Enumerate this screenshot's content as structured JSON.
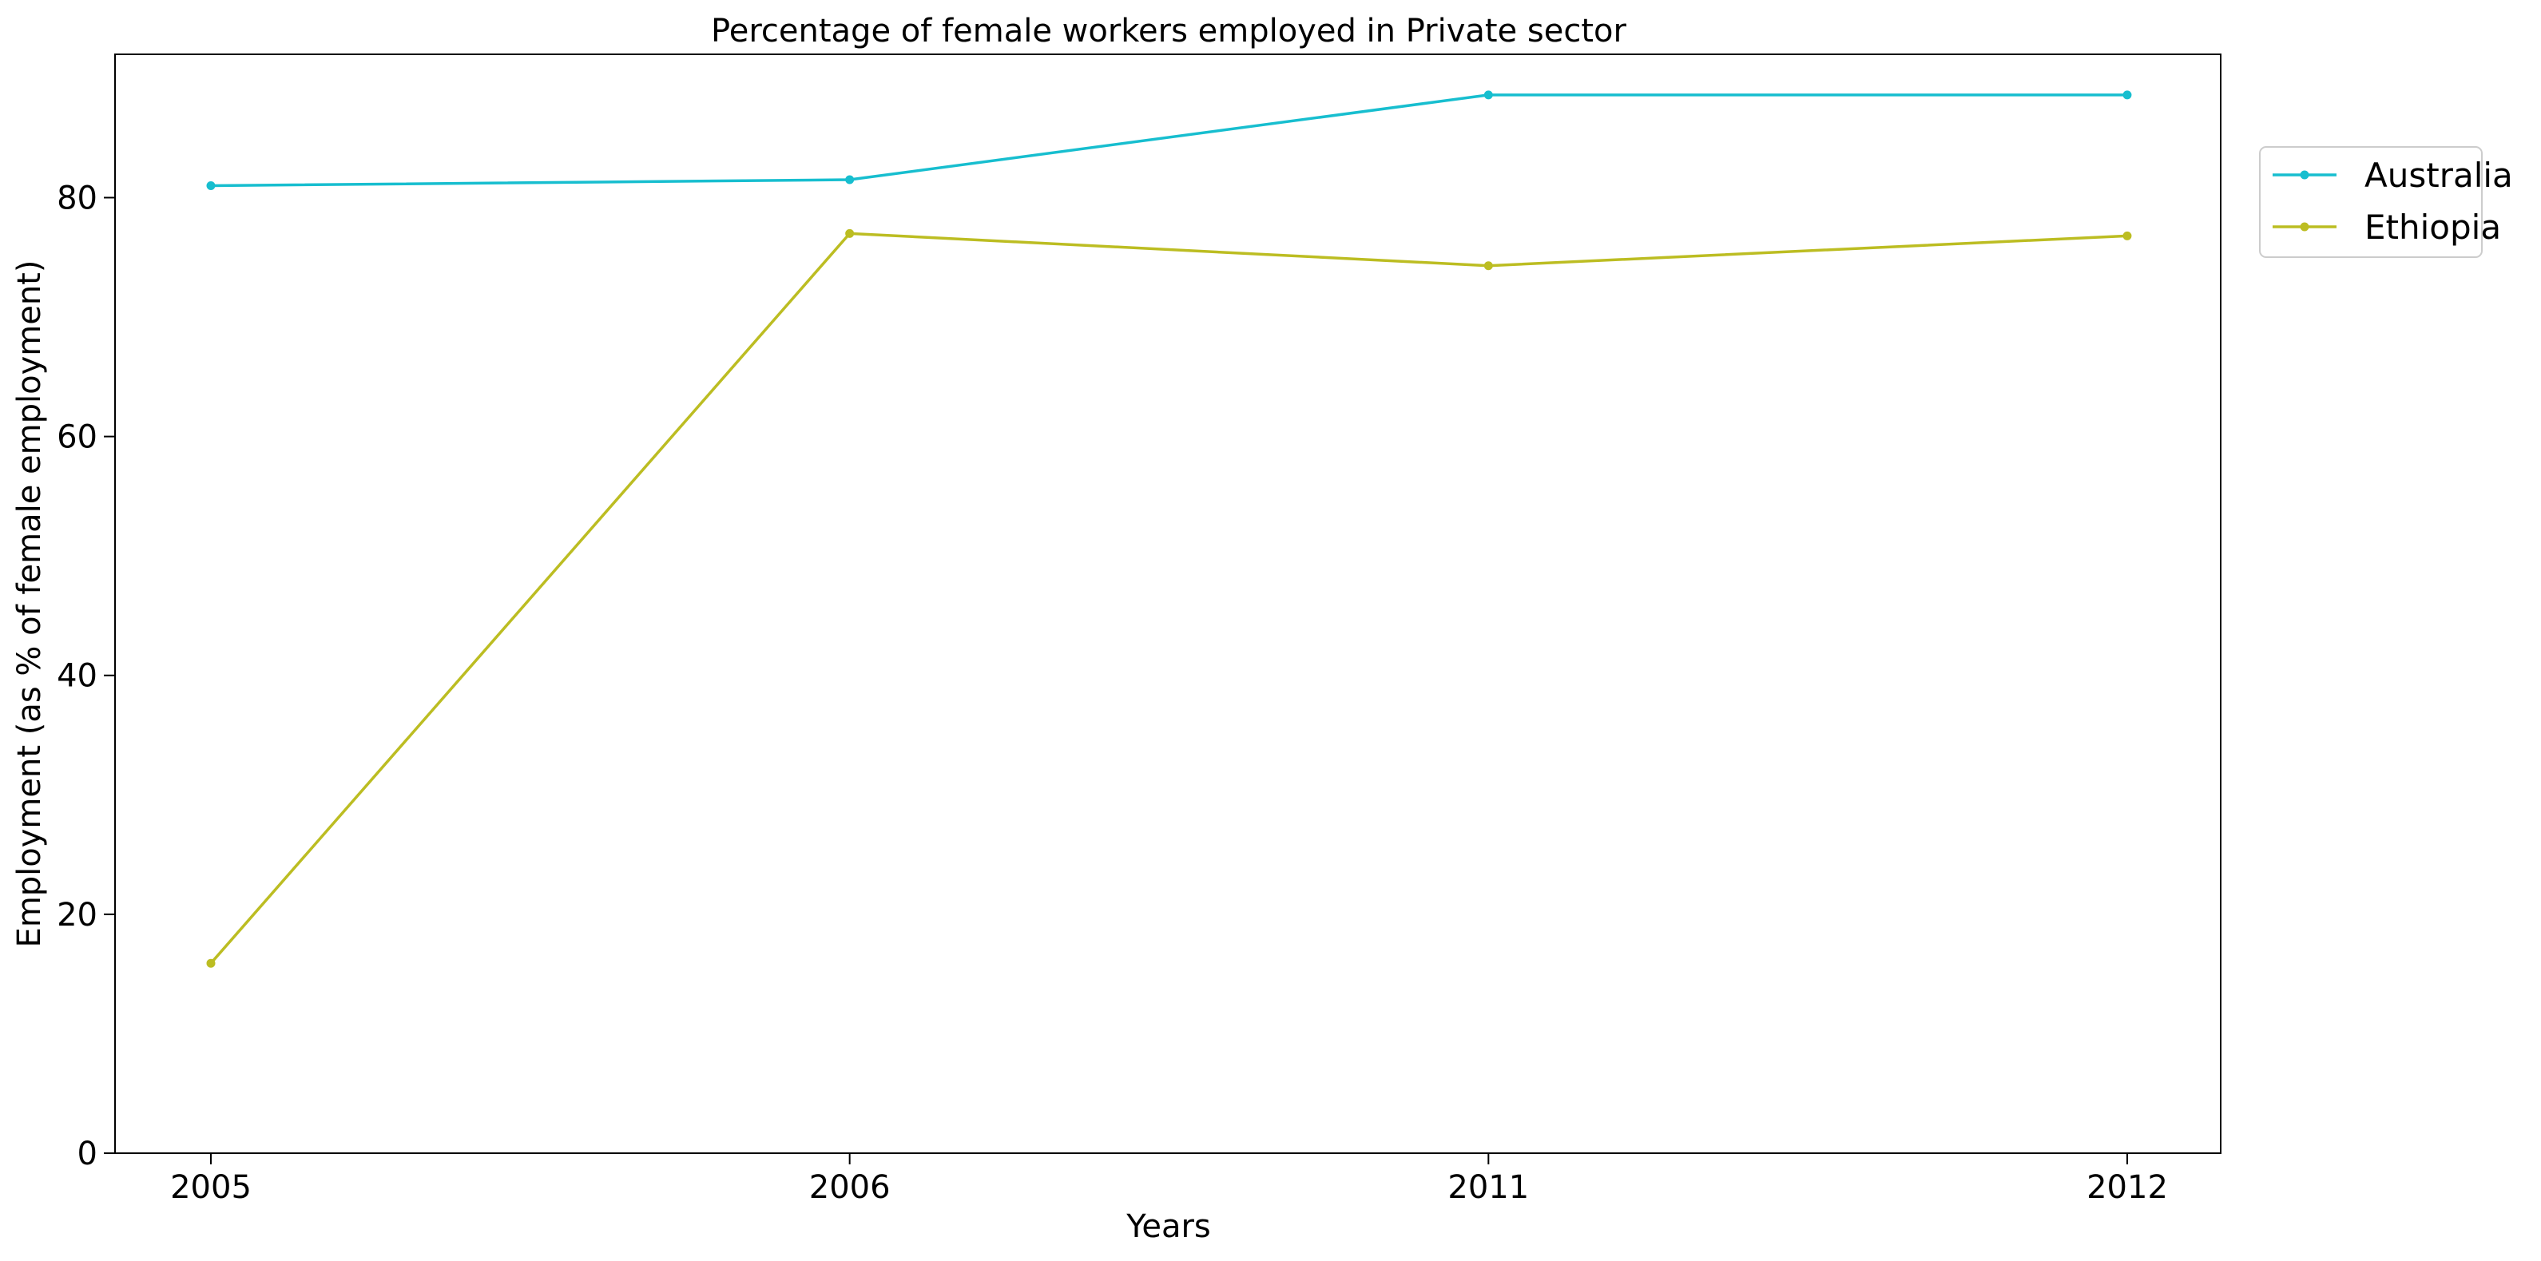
{
  "chart_data": {
    "type": "line",
    "title": "Percentage of female workers employed in Private sector",
    "xlabel": "Years",
    "ylabel": "Employment (as % of female employment)",
    "categories": [
      "2005",
      "2006",
      "2011",
      "2012"
    ],
    "yticks": [
      0,
      20,
      40,
      60,
      80
    ],
    "ylim": [
      0,
      92
    ],
    "grid": false,
    "legend_position": "top-right, outside plot",
    "series": [
      {
        "name": "Australia",
        "color": "#17becf",
        "marker": "circle",
        "values": [
          81.0,
          81.5,
          88.6,
          88.6
        ]
      },
      {
        "name": "Ethiopia",
        "color": "#bcbd22",
        "marker": "circle",
        "values": [
          15.9,
          77.0,
          74.3,
          76.8
        ]
      }
    ]
  }
}
